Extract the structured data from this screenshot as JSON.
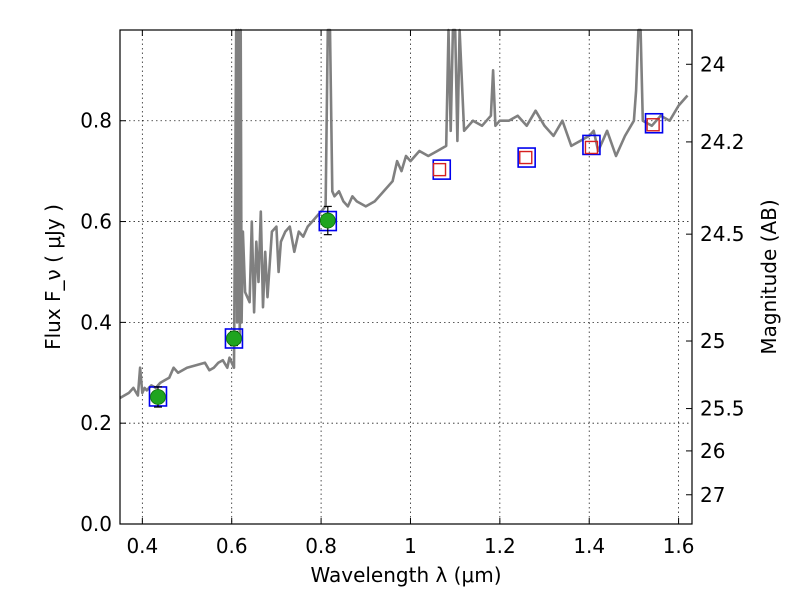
{
  "chart_data": {
    "type": "line",
    "title": "",
    "xlabel": "Wavelength  λ (μm)",
    "ylabel": "Flux  F_ν  ( μJy )",
    "ylabel_right": "Magnitude (AB)",
    "xlim": [
      0.35,
      1.63
    ],
    "ylim": [
      0.0,
      0.98
    ],
    "grid": true,
    "x_ticks": [
      0.4,
      0.6,
      0.8,
      1.0,
      1.2,
      1.4,
      1.6
    ],
    "x_tick_labels": [
      "0.4",
      "0.6",
      "0.8",
      "1",
      "1.2",
      "1.4",
      "1.6"
    ],
    "y_ticks": [
      0.0,
      0.2,
      0.4,
      0.6,
      0.8
    ],
    "y_tick_labels": [
      "0.0",
      "0.2",
      "0.4",
      "0.6",
      "0.8"
    ],
    "right_ticks": [
      {
        "label": "24",
        "flux": 0.912
      },
      {
        "label": "24.2",
        "flux": 0.758
      },
      {
        "label": "24.5",
        "flux": 0.575
      },
      {
        "label": "25",
        "flux": 0.363
      },
      {
        "label": "25.5",
        "flux": 0.229
      },
      {
        "label": "26",
        "flux": 0.145
      },
      {
        "label": "27",
        "flux": 0.058
      }
    ],
    "series": [
      {
        "kind": "spectrum",
        "color": "#808080",
        "x": [
          0.35,
          0.37,
          0.38,
          0.39,
          0.395,
          0.4,
          0.405,
          0.41,
          0.42,
          0.43,
          0.44,
          0.45,
          0.46,
          0.47,
          0.48,
          0.5,
          0.52,
          0.54,
          0.55,
          0.56,
          0.57,
          0.58,
          0.59,
          0.595,
          0.6,
          0.605,
          0.61,
          0.612,
          0.615,
          0.618,
          0.62,
          0.622,
          0.625,
          0.63,
          0.64,
          0.645,
          0.65,
          0.655,
          0.66,
          0.665,
          0.67,
          0.675,
          0.68,
          0.69,
          0.7,
          0.705,
          0.71,
          0.72,
          0.73,
          0.74,
          0.75,
          0.76,
          0.77,
          0.78,
          0.79,
          0.8,
          0.81,
          0.815,
          0.82,
          0.825,
          0.83,
          0.84,
          0.85,
          0.86,
          0.87,
          0.88,
          0.9,
          0.92,
          0.94,
          0.96,
          0.97,
          0.98,
          0.99,
          1.0,
          1.02,
          1.04,
          1.06,
          1.08,
          1.085,
          1.09,
          1.095,
          1.1,
          1.105,
          1.11,
          1.12,
          1.14,
          1.16,
          1.18,
          1.185,
          1.19,
          1.2,
          1.22,
          1.24,
          1.26,
          1.28,
          1.3,
          1.32,
          1.34,
          1.36,
          1.38,
          1.4,
          1.41,
          1.42,
          1.44,
          1.46,
          1.48,
          1.5,
          1.505,
          1.51,
          1.515,
          1.52,
          1.54,
          1.56,
          1.58,
          1.6,
          1.62
        ],
        "y": [
          0.25,
          0.26,
          0.27,
          0.255,
          0.31,
          0.26,
          0.27,
          0.265,
          0.275,
          0.27,
          0.28,
          0.285,
          0.29,
          0.31,
          0.3,
          0.31,
          0.315,
          0.32,
          0.305,
          0.31,
          0.32,
          0.325,
          0.31,
          0.33,
          0.32,
          0.31,
          0.98,
          0.4,
          0.98,
          0.36,
          0.98,
          0.4,
          0.58,
          0.46,
          0.44,
          0.6,
          0.42,
          0.56,
          0.48,
          0.62,
          0.43,
          0.54,
          0.45,
          0.58,
          0.59,
          0.5,
          0.56,
          0.58,
          0.59,
          0.54,
          0.58,
          0.57,
          0.59,
          0.6,
          0.61,
          0.62,
          0.63,
          0.98,
          0.98,
          0.66,
          0.65,
          0.66,
          0.64,
          0.63,
          0.65,
          0.64,
          0.63,
          0.64,
          0.66,
          0.68,
          0.72,
          0.7,
          0.73,
          0.72,
          0.74,
          0.73,
          0.74,
          0.75,
          0.98,
          0.78,
          0.98,
          0.98,
          0.76,
          0.98,
          0.78,
          0.8,
          0.79,
          0.81,
          0.9,
          0.79,
          0.8,
          0.8,
          0.81,
          0.79,
          0.82,
          0.79,
          0.77,
          0.8,
          0.75,
          0.76,
          0.77,
          0.78,
          0.74,
          0.78,
          0.73,
          0.77,
          0.8,
          0.86,
          0.98,
          0.98,
          0.8,
          0.79,
          0.81,
          0.8,
          0.83,
          0.85
        ]
      },
      {
        "kind": "model-photometry",
        "marker": "square",
        "color": "#0000ee",
        "x": [
          0.435,
          0.605,
          0.815,
          1.07,
          1.26,
          1.405,
          1.545
        ],
        "y": [
          0.253,
          0.368,
          0.601,
          0.703,
          0.727,
          0.752,
          0.795
        ]
      },
      {
        "kind": "observed-photometry",
        "marker": "circle",
        "color": "#1fa41f",
        "x": [
          0.435,
          0.605,
          0.815
        ],
        "y": [
          0.252,
          0.368,
          0.602
        ],
        "yerr": [
          0.02,
          0.014,
          0.028
        ]
      },
      {
        "kind": "nir-photometry",
        "marker": "open-square",
        "color": "#d62020",
        "x": [
          1.065,
          1.258,
          1.405,
          1.543
        ],
        "y": [
          0.703,
          0.727,
          0.747,
          0.792
        ]
      }
    ]
  }
}
